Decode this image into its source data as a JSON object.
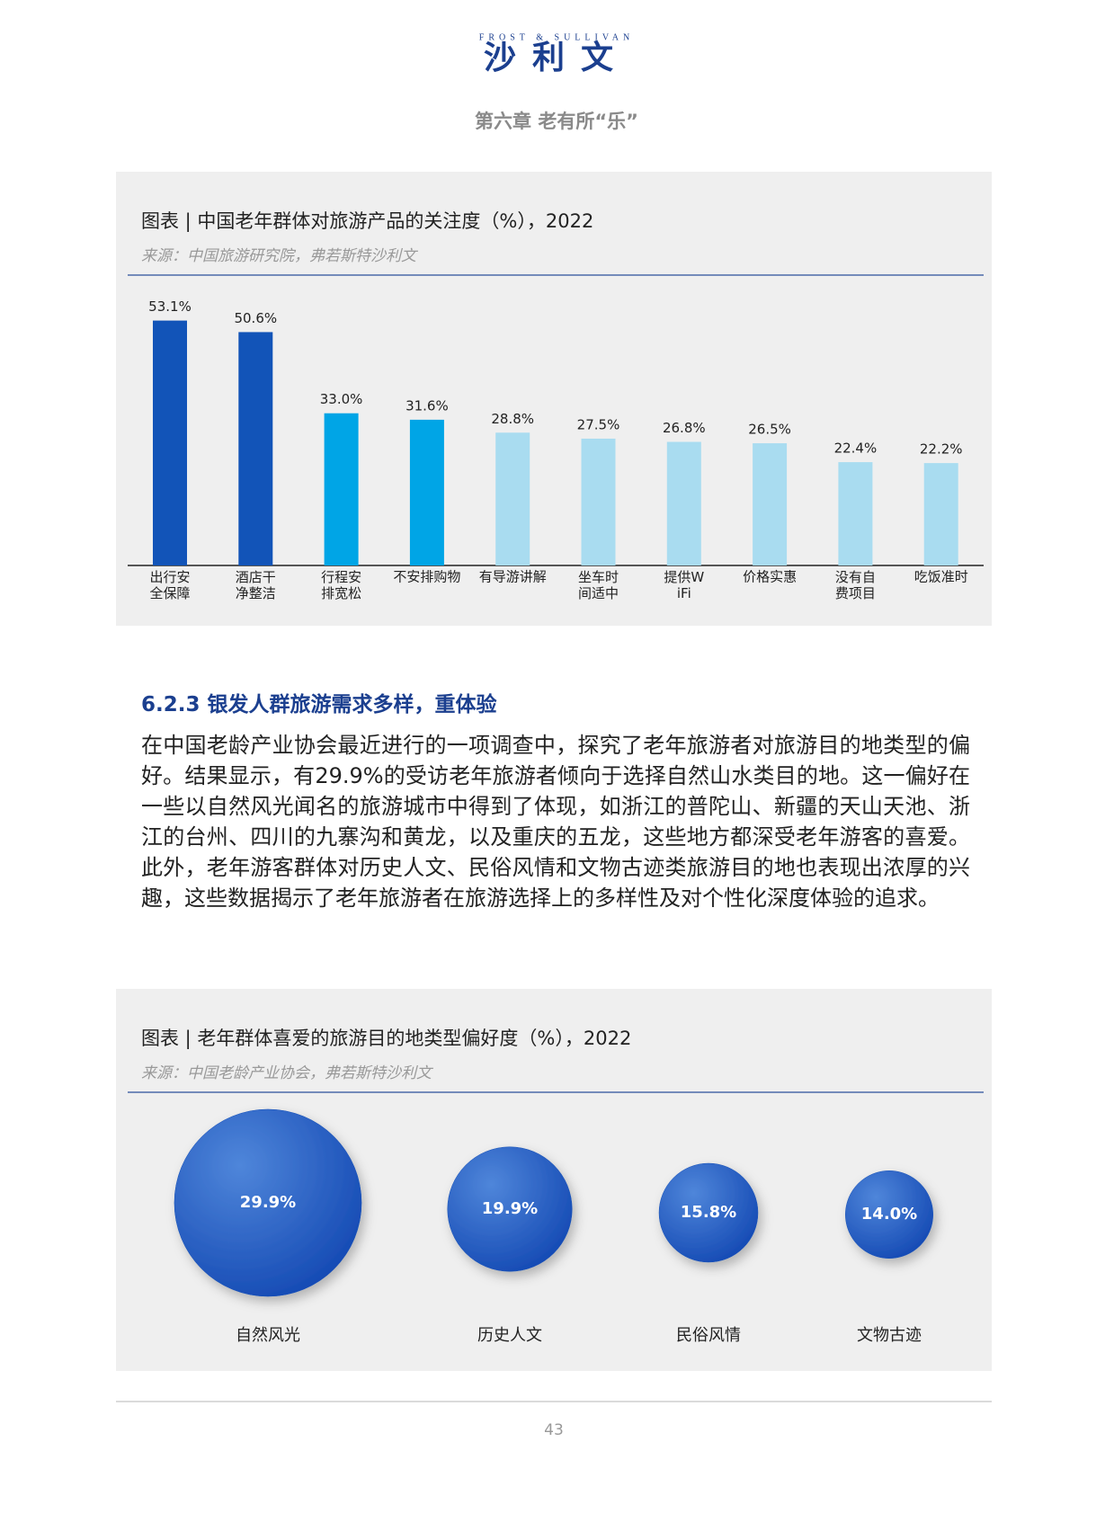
{
  "header": {
    "brand_en": "FROST & SULLIVAN",
    "brand_cn": "沙利文",
    "chapter": "第六章  老有所“乐”"
  },
  "section": {
    "heading": "6.2.3 银发人群旅游需求多样，重体验",
    "paragraph": "在中国老龄产业协会最近进行的一项调查中，探究了老年旅游者对旅游目的地类型的偏好。结果显示，有29.9%的受访老年旅游者倾向于选择自然山水类目的地。这一偏好在一些以自然风光闻名的旅游城市中得到了体现，如浙江的普陀山、新疆的天山天池、浙江的台州、四川的九寨沟和黄龙，以及重庆的五龙，这些地方都深受老年游客的喜爱。此外，老年游客群体对历史人文、民俗风情和文物古迹类旅游目的地也表现出浓厚的兴趣，这些数据揭示了老年旅游者在旅游选择上的多样性及对个性化深度体验的追求。"
  },
  "chart_data": [
    {
      "type": "bar",
      "title": "图表 | 中国老年群体对旅游产品的关注度（%），2022",
      "source": "来源：中国旅游研究院，弗若斯特沙利文",
      "categories": [
        "出行安全保障",
        "酒店干净整洁",
        "行程安排宽松",
        "不安排购物",
        "有导游讲解",
        "坐车时间适中",
        "提供WiFi",
        "价格实惠",
        "没有自费项目",
        "吃饭准时"
      ],
      "values": [
        53.1,
        50.6,
        33.0,
        31.6,
        28.8,
        27.5,
        26.8,
        26.5,
        22.4,
        22.2
      ],
      "value_labels": [
        "53.1%",
        "50.6%",
        "33.0%",
        "31.6%",
        "28.8%",
        "27.5%",
        "26.8%",
        "26.5%",
        "22.4%",
        "22.2%"
      ],
      "colors": [
        "#1254b8",
        "#1254b8",
        "#00a5e6",
        "#00a5e6",
        "#a9dcf0",
        "#a9dcf0",
        "#a9dcf0",
        "#a9dcf0",
        "#a9dcf0",
        "#a9dcf0"
      ]
    },
    {
      "type": "bubble",
      "title": "图表 | 老年群体喜爱的旅游目的地类型偏好度（%），2022",
      "source": "来源：中国老龄产业协会，弗若斯特沙利文",
      "categories": [
        "自然风光",
        "历史人文",
        "民俗风情",
        "文物古迹"
      ],
      "values": [
        29.9,
        19.9,
        15.8,
        14.0
      ],
      "value_labels": [
        "29.9%",
        "19.9%",
        "15.8%",
        "14.0%"
      ],
      "color": "#1450b8"
    }
  ],
  "page_number": "43"
}
